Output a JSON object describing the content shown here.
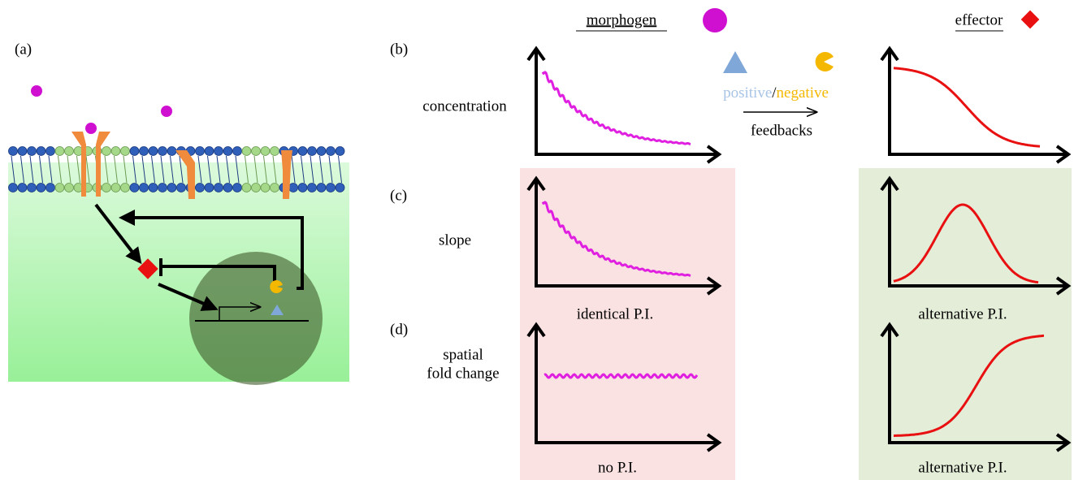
{
  "panel_a": {
    "label": "(a)"
  },
  "header": {
    "morphogen": "morphogen",
    "effector": "effector"
  },
  "feedback": {
    "positive": "positive",
    "separator": "/",
    "negative": "negative",
    "caption": "feedbacks"
  },
  "rows": [
    {
      "label": "(b)",
      "name": [
        "concentration"
      ]
    },
    {
      "label": "(c)",
      "name": [
        "slope"
      ],
      "left_caption": "identical P.I.",
      "right_caption": "alternative P.I."
    },
    {
      "label": "(d)",
      "name": [
        "spatial",
        "fold change"
      ],
      "left_caption": "no P.I.",
      "right_caption": "alternative P.I."
    }
  ]
}
